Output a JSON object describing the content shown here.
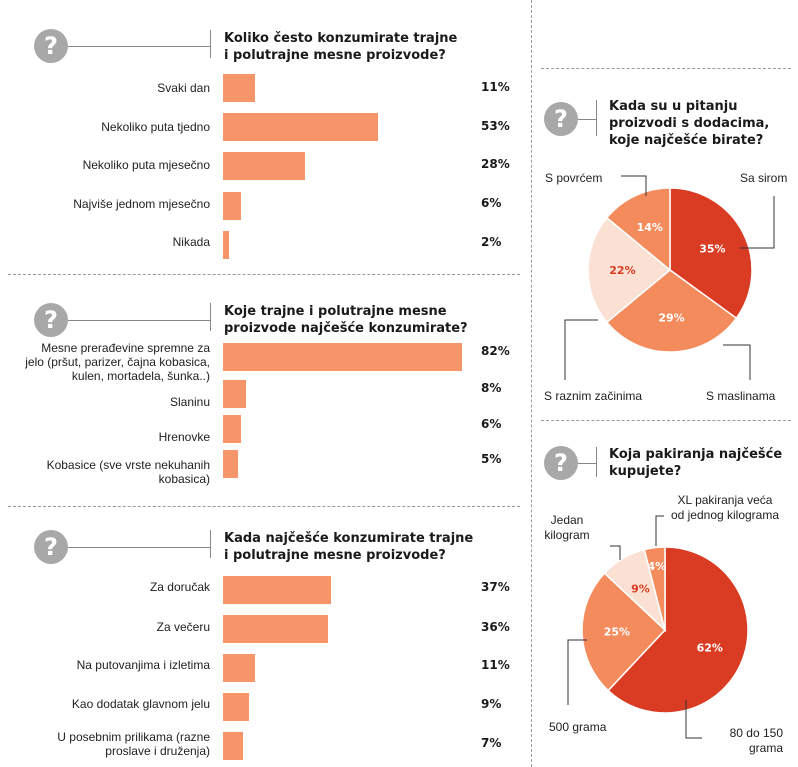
{
  "colors": {
    "bar": "#f7956a",
    "pie_dark": "#d93c23",
    "pie_mid": "#f48b5d",
    "pie_light": "#fbe1d3",
    "question_icon": "#a8a8a8"
  },
  "question_icon": "?",
  "chart_data": [
    {
      "type": "bar",
      "title": "Koliko često konzumirate trajne i polutrajne mesne proizvode?",
      "categories": [
        "Svaki dan",
        "Nekoliko puta tjedno",
        "Nekoliko puta mjesečno",
        "Najviše jednom mjesečno",
        "Nikada"
      ],
      "values": [
        11,
        53,
        28,
        6,
        2
      ],
      "value_labels": [
        "11%",
        "53%",
        "28%",
        "6%",
        "2%"
      ]
    },
    {
      "type": "bar",
      "title": "Koje trajne i polutrajne mesne proizvode najčešće konzumirate?",
      "categories": [
        "Mesne prerađevine spremne za jelo (pršut, parizer, čajna kobasica, kulen, mortadela, šunka..)",
        "Slaninu",
        "Hrenovke",
        "Kobasice (sve vrste nekuhanih kobasica)"
      ],
      "values": [
        82,
        8,
        6,
        5
      ],
      "value_labels": [
        "82%",
        "8%",
        "6%",
        "5%"
      ]
    },
    {
      "type": "bar",
      "title": "Kada najčešće konzumirate trajne i polutrajne mesne proizvode?",
      "categories": [
        "Za doručak",
        "Za večeru",
        "Na putovanjima i izletima",
        "Kao dodatak glavnom jelu",
        "U posebnim prilikama (razne proslave i druženja)"
      ],
      "values": [
        37,
        36,
        11,
        9,
        7
      ],
      "value_labels": [
        "37%",
        "36%",
        "11%",
        "9%",
        "7%"
      ]
    },
    {
      "type": "pie",
      "title": "Kada su u pitanju proizvodi s dodacima, koje najčešće birate?",
      "slices": [
        {
          "label": "Sa sirom",
          "value": 35,
          "value_label": "35%",
          "color": "#d93c23"
        },
        {
          "label": "S maslinama",
          "value": 29,
          "value_label": "29%",
          "color": "#f48b5d"
        },
        {
          "label": "S raznim začinima",
          "value": 22,
          "value_label": "22%",
          "color": "#fbe1d3"
        },
        {
          "label": "S povrćem",
          "value": 14,
          "value_label": "14%",
          "color": "#f48b5d"
        }
      ]
    },
    {
      "type": "pie",
      "title": "Koja pakiranja najčešće kupujete?",
      "slices": [
        {
          "label": "80 do 150 grama",
          "value": 62,
          "value_label": "62%",
          "color": "#d93c23"
        },
        {
          "label": "500 grama",
          "value": 25,
          "value_label": "25%",
          "color": "#f48b5d"
        },
        {
          "label": "Jedan kilogram",
          "value": 9,
          "value_label": "9%",
          "color": "#fbe1d3"
        },
        {
          "label": "XL pakiranja veća od jednog kilograma",
          "value": 4,
          "value_label": "4%",
          "color": "#f48b5d"
        }
      ]
    }
  ]
}
